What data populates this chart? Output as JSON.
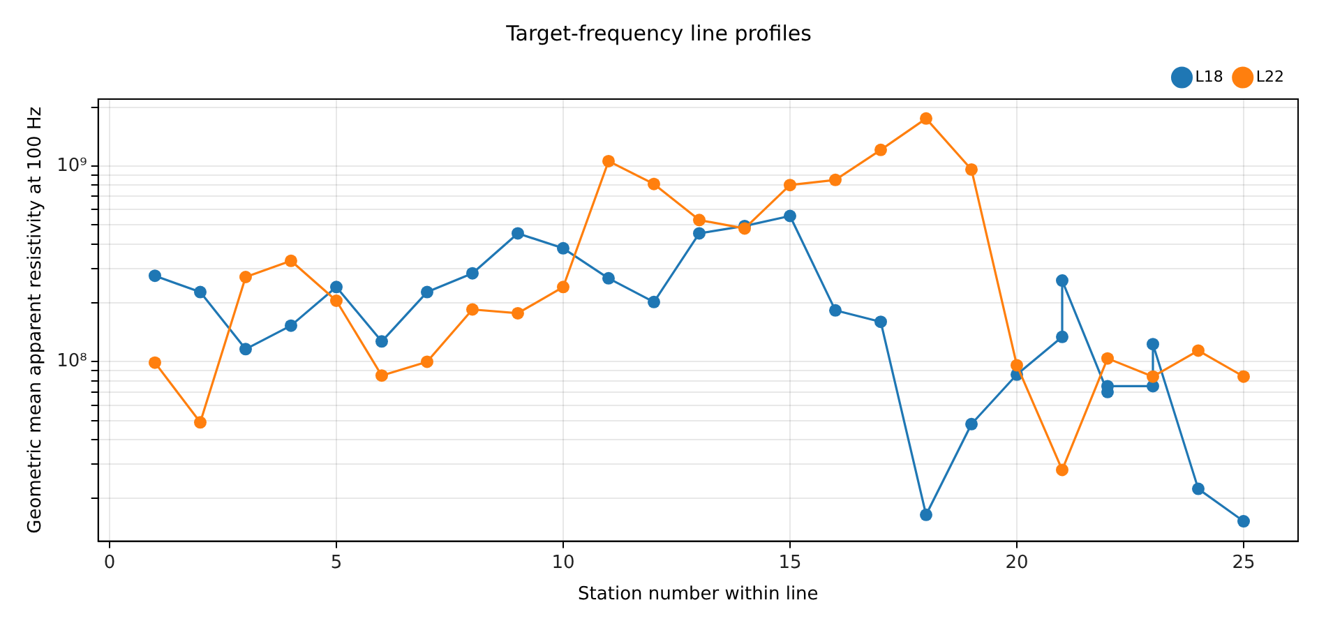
{
  "chart_data": {
    "type": "line",
    "title": "Target-frequency line profiles",
    "xlabel": "Station number within line",
    "ylabel": "Geometric mean apparent resistivity at 100 Hz",
    "series": [
      {
        "name": "L18",
        "color": "#1f77b4",
        "x": [
          1,
          2,
          3,
          4,
          5,
          6,
          7,
          8,
          9,
          10,
          11,
          12,
          13,
          14,
          15,
          16,
          17,
          18,
          19,
          20,
          21,
          21,
          22,
          22,
          23,
          23,
          24,
          25
        ],
        "values": [
          275000000,
          227000000,
          116000000,
          153000000,
          241000000,
          127000000,
          227000000,
          283000000,
          453000000,
          380000000,
          267000000,
          202000000,
          453000000,
          494000000,
          556000000,
          183000000,
          160000000,
          16500000,
          48000000,
          86000000,
          134000000,
          260000000,
          70000000,
          75000000,
          75000000,
          123000000,
          22400000,
          15300000
        ]
      },
      {
        "name": "L22",
        "color": "#ff7f0e",
        "x": [
          1,
          2,
          3,
          4,
          5,
          6,
          7,
          8,
          9,
          10,
          11,
          12,
          13,
          14,
          15,
          16,
          17,
          18,
          19,
          20,
          21,
          22,
          23,
          24,
          25
        ],
        "values": [
          99000000,
          49000000,
          271000000,
          328000000,
          205000000,
          85000000,
          100000000,
          185000000,
          177000000,
          241000000,
          1060000000,
          810000000,
          530000000,
          480000000,
          800000000,
          850000000,
          1210000000,
          1750000000,
          960000000,
          96000000,
          28000000,
          104000000,
          84000000,
          114000000,
          84000000
        ]
      }
    ],
    "xlim": [
      -0.25,
      26.2
    ],
    "xticks": [
      0,
      5,
      10,
      15,
      20,
      25
    ],
    "log": "y",
    "ylim": [
      12100000,
      2200000000
    ],
    "yticks": [
      {
        "value": 20000000,
        "label": null
      },
      {
        "value": 30000000,
        "label": null
      },
      {
        "value": 40000000,
        "label": null
      },
      {
        "value": 50000000,
        "label": null
      },
      {
        "value": 60000000,
        "label": null
      },
      {
        "value": 70000000,
        "label": null
      },
      {
        "value": 80000000,
        "label": null
      },
      {
        "value": 90000000,
        "label": null
      },
      {
        "value": 100000000,
        "label": "10⁸"
      },
      {
        "value": 200000000,
        "label": null
      },
      {
        "value": 300000000,
        "label": null
      },
      {
        "value": 400000000,
        "label": null
      },
      {
        "value": 500000000,
        "label": null
      },
      {
        "value": 600000000,
        "label": null
      },
      {
        "value": 700000000,
        "label": null
      },
      {
        "value": 800000000,
        "label": null
      },
      {
        "value": 900000000,
        "label": null
      },
      {
        "value": 1000000000,
        "label": "10⁹"
      },
      {
        "value": 2000000000,
        "label": null
      }
    ],
    "grid": true,
    "legend": "top right",
    "marker": "circle",
    "line_style": "solid"
  }
}
